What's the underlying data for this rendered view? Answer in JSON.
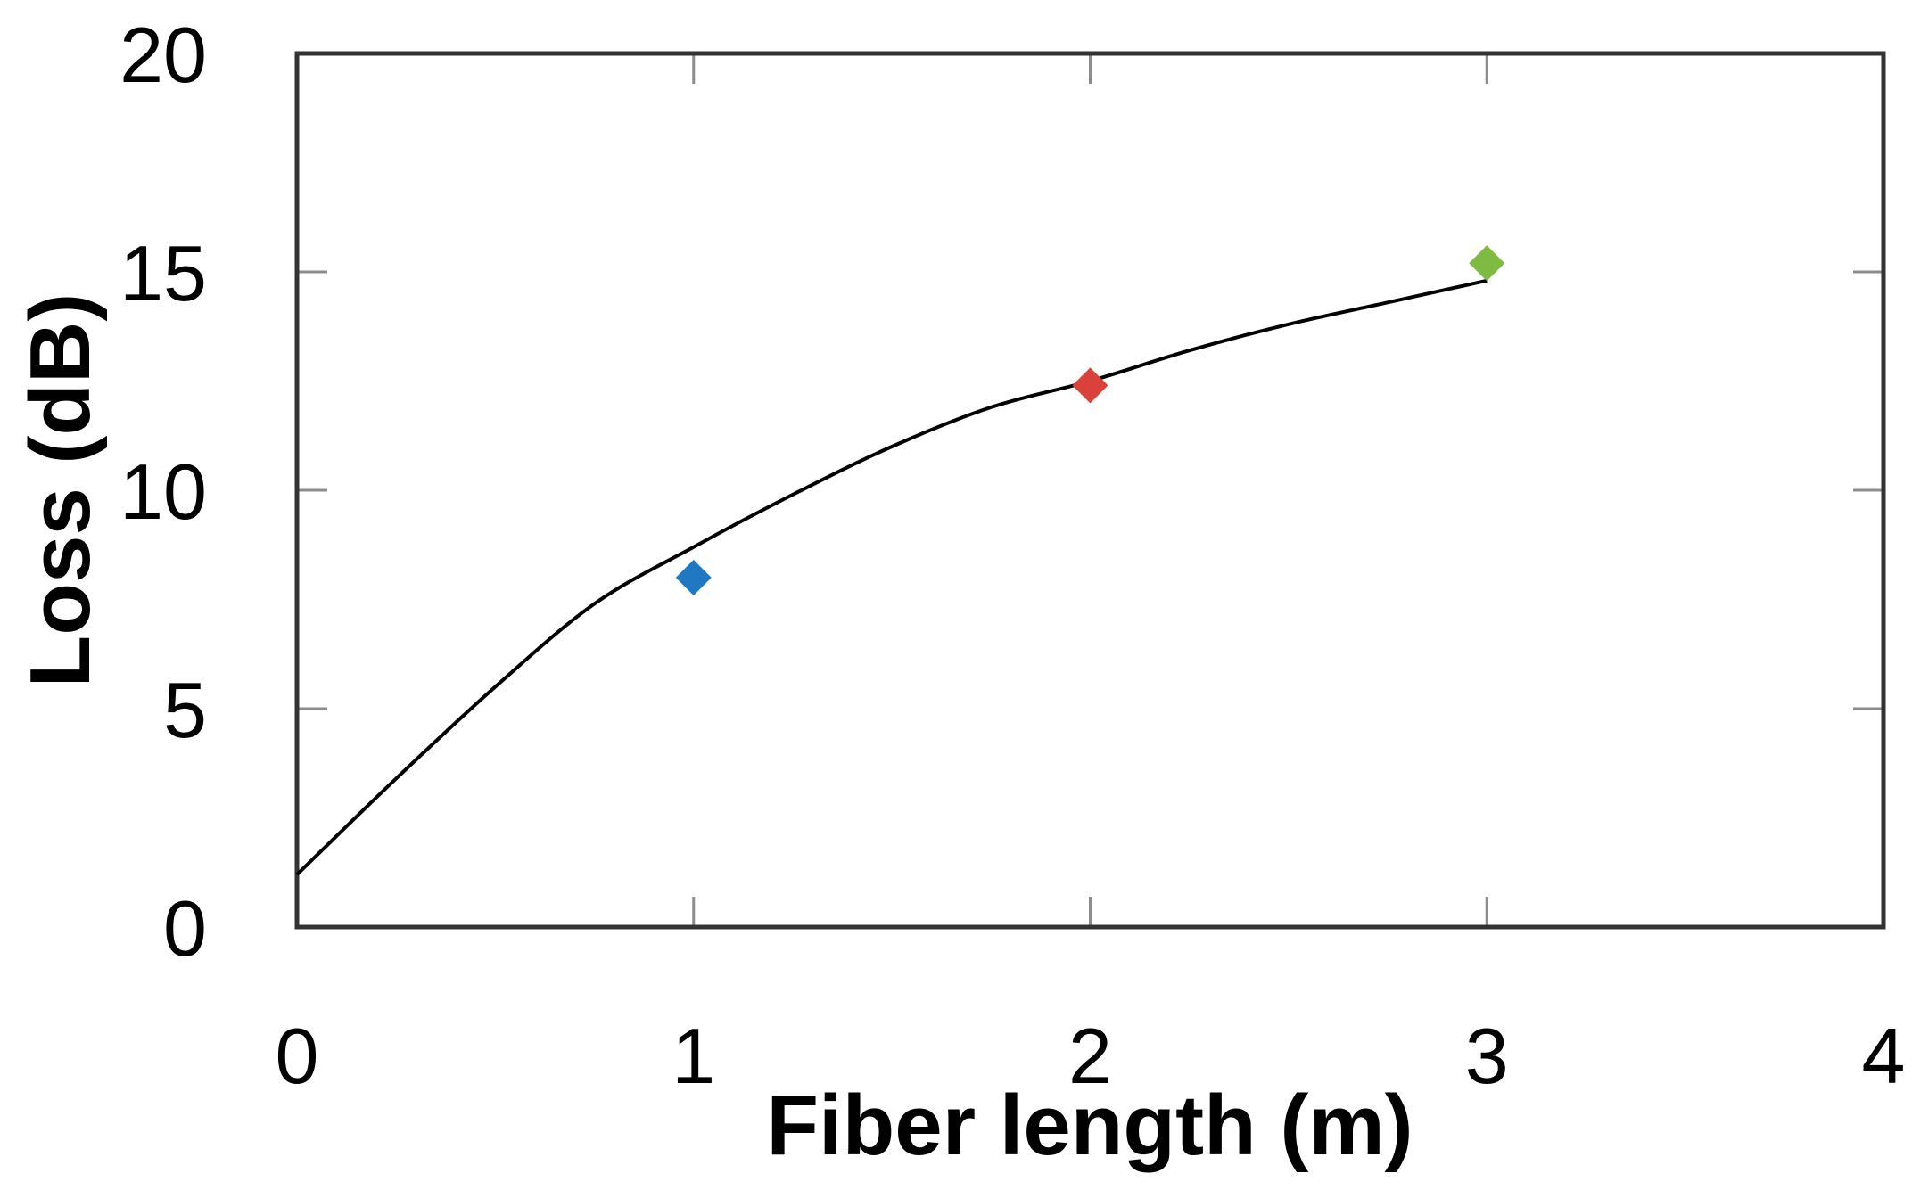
{
  "chart_data": {
    "type": "scatter",
    "title": "",
    "xlabel": "Fiber length (m)",
    "ylabel": "Loss (dB)",
    "xlim": [
      0,
      4
    ],
    "ylim": [
      0,
      20
    ],
    "xticks": [
      "0",
      "1",
      "2",
      "3",
      "4"
    ],
    "yticks": [
      "0",
      "5",
      "10",
      "15",
      "20"
    ],
    "grid": false,
    "points": [
      {
        "x": 1,
        "y": 8.0,
        "color": "#1f78c1"
      },
      {
        "x": 2,
        "y": 12.4,
        "color": "#d9413b"
      },
      {
        "x": 3,
        "y": 15.2,
        "color": "#7fba42"
      }
    ],
    "fit_curve": {
      "color": "#000000",
      "x": [
        0,
        0.25,
        0.5,
        0.75,
        1.0,
        1.25,
        1.5,
        1.75,
        2.0,
        2.25,
        2.5,
        2.75,
        3.0
      ],
      "y": [
        1.2,
        3.4,
        5.5,
        7.4,
        8.7,
        9.9,
        11.0,
        11.9,
        12.5,
        13.2,
        13.8,
        14.3,
        14.8
      ]
    }
  }
}
